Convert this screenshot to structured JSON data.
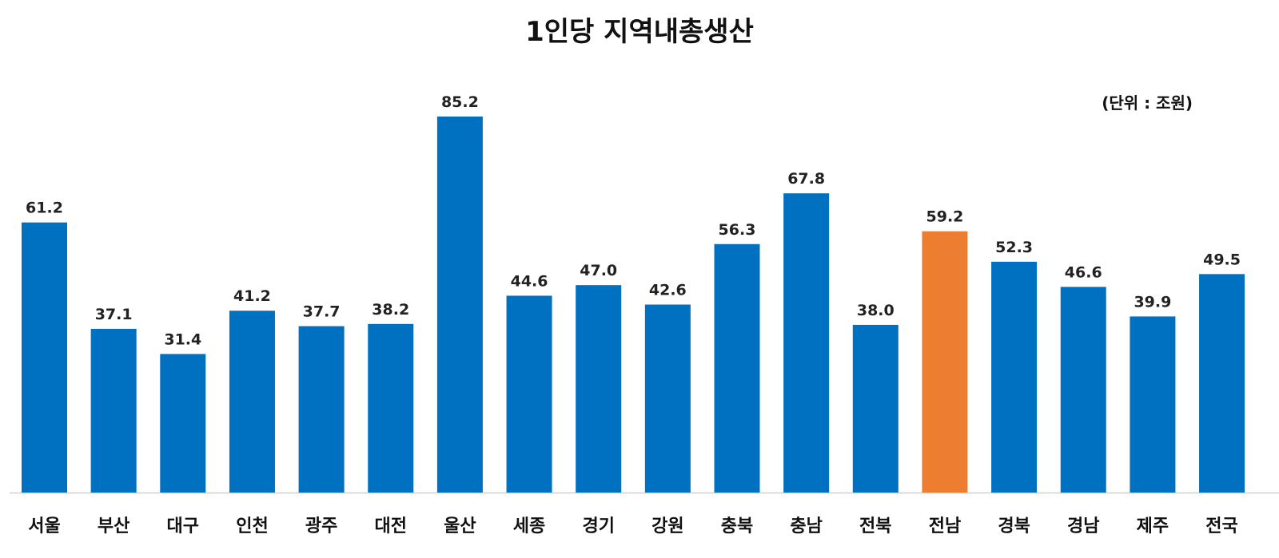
{
  "chart_data": {
    "type": "bar",
    "title": "1인당 지역내총생산",
    "unit_label": "(단위 : 조원)",
    "categories": [
      "서울",
      "부산",
      "대구",
      "인천",
      "광주",
      "대전",
      "울산",
      "세종",
      "경기",
      "강원",
      "충북",
      "충남",
      "전북",
      "전남",
      "경북",
      "경남",
      "제주",
      "전국"
    ],
    "values": [
      61.2,
      37.1,
      31.4,
      41.2,
      37.7,
      38.2,
      85.2,
      44.6,
      47.0,
      42.6,
      56.3,
      67.8,
      38.0,
      59.2,
      52.3,
      46.6,
      39.9,
      49.5
    ],
    "value_labels": [
      "61.2",
      "37.1",
      "31.4",
      "41.2",
      "37.7",
      "38.2",
      "85.2",
      "44.6",
      "47.0",
      "42.6",
      "56.3",
      "67.8",
      "38.0",
      "59.2",
      "52.3",
      "46.6",
      "39.9",
      "49.5"
    ],
    "highlight_category": "전남",
    "colors": {
      "default": "#0070C0",
      "highlight": "#ED7D31"
    },
    "xlabel": "",
    "ylabel": "",
    "ylim": [
      0,
      85.2
    ],
    "grid": false,
    "legend": "none"
  }
}
